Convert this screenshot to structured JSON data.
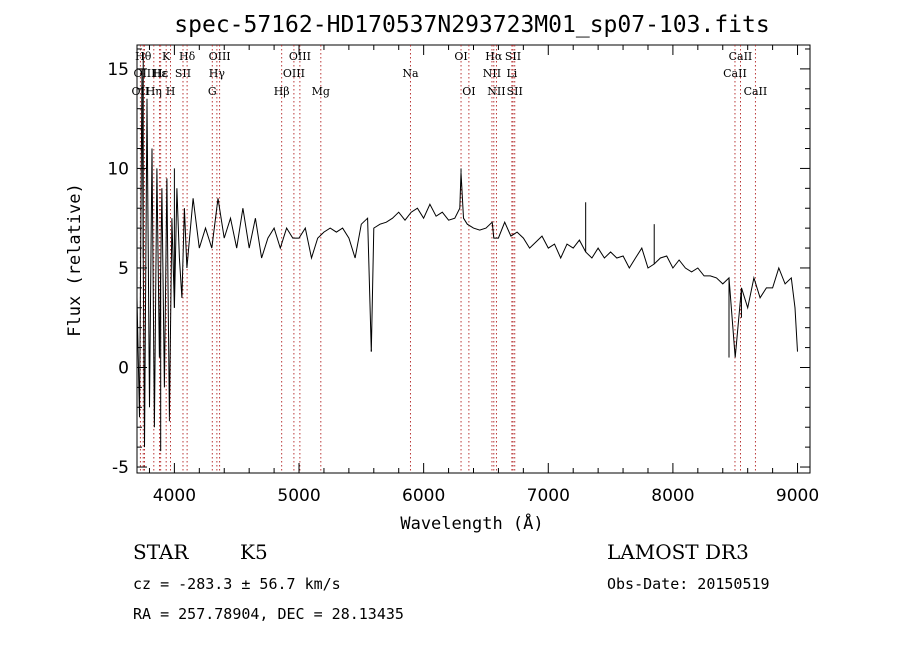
{
  "chart_data": {
    "type": "line",
    "title": "spec-57162-HD170537N293723M01_sp07-103.fits",
    "xlabel": "Wavelength (Å)",
    "ylabel": "Flux (relative)",
    "xlim": [
      3700,
      9100
    ],
    "ylim": [
      -5.3,
      16.2
    ],
    "xticks": [
      4000,
      5000,
      6000,
      7000,
      8000,
      9000
    ],
    "yticks": [
      -5,
      0,
      5,
      10,
      15
    ],
    "series": [
      {
        "name": "spectrum",
        "x": [
          3700,
          3720,
          3740,
          3760,
          3780,
          3800,
          3820,
          3840,
          3860,
          3880,
          3900,
          3920,
          3940,
          3960,
          3980,
          4000,
          4020,
          4040,
          4060,
          4080,
          4100,
          4150,
          4200,
          4250,
          4300,
          4350,
          4400,
          4450,
          4500,
          4550,
          4600,
          4650,
          4700,
          4750,
          4800,
          4850,
          4900,
          4950,
          5000,
          5050,
          5100,
          5150,
          5200,
          5250,
          5300,
          5350,
          5400,
          5450,
          5500,
          5550,
          5580,
          5600,
          5650,
          5700,
          5750,
          5800,
          5850,
          5900,
          5950,
          6000,
          6050,
          6100,
          6150,
          6200,
          6250,
          6290,
          6300,
          6320,
          6350,
          6400,
          6450,
          6500,
          6550,
          6563,
          6600,
          6650,
          6700,
          6750,
          6800,
          6850,
          6900,
          6950,
          7000,
          7050,
          7100,
          7150,
          7200,
          7250,
          7300,
          7350,
          7400,
          7450,
          7500,
          7550,
          7600,
          7650,
          7700,
          7750,
          7800,
          7850,
          7900,
          7950,
          8000,
          8050,
          8100,
          8150,
          8200,
          8250,
          8300,
          8350,
          8400,
          8450,
          8500,
          8550,
          8600,
          8650,
          8700,
          8750,
          8800,
          8850,
          8900,
          8950,
          8980,
          9000
        ],
        "values": [
          3.5,
          -2.5,
          15.0,
          -4.0,
          13.5,
          -2.0,
          11.0,
          -3.0,
          10.0,
          0.5,
          9.0,
          -1.0,
          9.5,
          -2.5,
          7.5,
          3.0,
          9.0,
          5.5,
          3.5,
          8.0,
          5.0,
          8.5,
          6.0,
          7.0,
          6.0,
          8.5,
          6.5,
          7.5,
          6.0,
          8.0,
          6.0,
          7.5,
          5.5,
          6.5,
          7.0,
          6.0,
          7.0,
          6.5,
          6.5,
          7.0,
          5.5,
          6.5,
          6.8,
          7.0,
          6.8,
          7.0,
          6.5,
          5.5,
          7.2,
          7.5,
          0.8,
          7.0,
          7.2,
          7.3,
          7.5,
          7.8,
          7.4,
          7.8,
          8.0,
          7.5,
          8.2,
          7.6,
          7.8,
          7.4,
          7.5,
          8.0,
          9.8,
          7.5,
          7.2,
          7.0,
          6.9,
          7.0,
          7.3,
          6.5,
          6.5,
          7.3,
          6.6,
          6.8,
          6.5,
          6.0,
          6.3,
          6.6,
          6.0,
          6.2,
          5.5,
          6.2,
          6.0,
          6.4,
          5.8,
          5.5,
          6.0,
          5.5,
          5.8,
          5.5,
          5.6,
          5.0,
          5.5,
          6.0,
          5.0,
          5.2,
          5.5,
          5.6,
          5.0,
          5.4,
          5.0,
          4.8,
          5.0,
          4.6,
          4.6,
          4.5,
          4.2,
          4.5,
          0.5,
          4.0,
          3.0,
          4.5,
          3.5,
          4.0,
          4.0,
          5.0,
          4.2,
          4.5,
          3.0,
          0.8
        ],
        "spikes": [
          {
            "x": 3750,
            "y": 15.8
          },
          {
            "x": 3890,
            "y": -4.2
          },
          {
            "x": 3960,
            "y": -2.7
          },
          {
            "x": 4000,
            "y": 10.0
          },
          {
            "x": 5580,
            "y": 0.9
          },
          {
            "x": 6300,
            "y": 10.0
          },
          {
            "x": 7300,
            "y": 8.3
          },
          {
            "x": 7850,
            "y": 7.2
          },
          {
            "x": 8450,
            "y": 0.5
          },
          {
            "x": 8550,
            "y": 2.5
          }
        ]
      }
    ],
    "lines": [
      {
        "name": "OII",
        "x": 3727,
        "row": 2
      },
      {
        "name": "Hθ",
        "x": 3750,
        "row": 0
      },
      {
        "name": "OIII",
        "x": 3760,
        "row": 1
      },
      {
        "name": "Hη",
        "x": 3835,
        "row": 2
      },
      {
        "name": "Hε",
        "x": 3880,
        "row": 1
      },
      {
        "name": "K",
        "x": 3934,
        "row": 0
      },
      {
        "name": "Hε",
        "x": 3890,
        "row": 1
      },
      {
        "name": "H",
        "x": 3969,
        "row": 2
      },
      {
        "name": "SII",
        "x": 4069,
        "row": 1
      },
      {
        "name": "Hδ",
        "x": 4102,
        "row": 0
      },
      {
        "name": "G",
        "x": 4304,
        "row": 2
      },
      {
        "name": "Hγ",
        "x": 4341,
        "row": 1
      },
      {
        "name": "OIII",
        "x": 4363,
        "row": 0
      },
      {
        "name": "Hβ",
        "x": 4861,
        "row": 2
      },
      {
        "name": "OIII",
        "x": 4959,
        "row": 1
      },
      {
        "name": "OIII",
        "x": 5007,
        "row": 0
      },
      {
        "name": "Mg",
        "x": 5175,
        "row": 2
      },
      {
        "name": "Na",
        "x": 5894,
        "row": 1
      },
      {
        "name": "OI",
        "x": 6300,
        "row": 0
      },
      {
        "name": "OI",
        "x": 6363,
        "row": 2
      },
      {
        "name": "Hα",
        "x": 6563,
        "row": 0
      },
      {
        "name": "NII",
        "x": 6548,
        "row": 1
      },
      {
        "name": "NII",
        "x": 6584,
        "row": 2
      },
      {
        "name": "SII",
        "x": 6717,
        "row": 0
      },
      {
        "name": "Li",
        "x": 6708,
        "row": 1
      },
      {
        "name": "SII",
        "x": 6731,
        "row": 2
      },
      {
        "name": "CaII",
        "x": 8498,
        "row": 1
      },
      {
        "name": "CaII",
        "x": 8542,
        "row": 0
      },
      {
        "name": "CaII",
        "x": 8662,
        "row": 2
      }
    ],
    "line_color": "#b22222",
    "spectrum_color": "#000000"
  },
  "info": {
    "class": "STAR",
    "subclass": "K5",
    "survey": "LAMOST DR3",
    "redshift": "cz = -283.3 ± 56.7 km/s",
    "obs_date": "Obs-Date: 20150519",
    "coords": "RA = 257.78904, DEC =  28.13435"
  }
}
